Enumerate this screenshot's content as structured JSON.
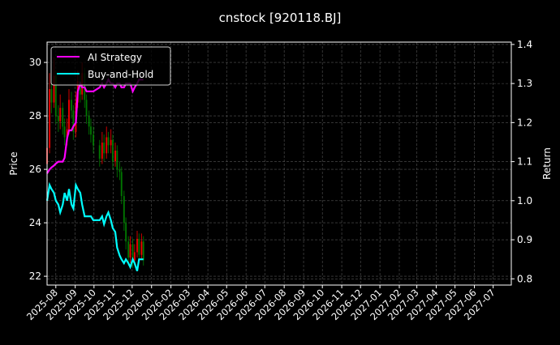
{
  "chart_data": {
    "type": "line",
    "title": "cnstock [920118.BJ]",
    "ylabel": "Price",
    "ylabel_right": "Return",
    "xlim": [
      "2025-07-18",
      "2027-07-30"
    ],
    "ylim": [
      21.67,
      30.76
    ],
    "ylim_right": [
      0.784,
      1.406
    ],
    "yticks": [
      22,
      24,
      26,
      28,
      30
    ],
    "yticks_right": [
      0.8,
      0.9,
      1.0,
      1.1,
      1.2,
      1.3,
      1.4
    ],
    "xticks": [
      "2025-08",
      "2025-09",
      "2025-10",
      "2025-11",
      "2025-12",
      "2026-01",
      "2026-02",
      "2026-03",
      "2026-04",
      "2026-05",
      "2026-06",
      "2026-07",
      "2026-08",
      "2026-09",
      "2026-10",
      "2026-11",
      "2026-12",
      "2027-01",
      "2027-02",
      "2027-03",
      "2027-04",
      "2027-05",
      "2027-06",
      "2027-07"
    ],
    "grid": true,
    "legend_placement": "top-left",
    "colors": {
      "up": "#ff0000",
      "down": "#008000",
      "ai": "#ff00ff",
      "bh": "#00ffff",
      "background": "#000000",
      "grid": "#555555"
    },
    "dates": [
      "2025-07-18",
      "2025-07-22",
      "2025-07-25",
      "2025-07-29",
      "2025-08-01",
      "2025-08-05",
      "2025-08-08",
      "2025-08-12",
      "2025-08-15",
      "2025-08-19",
      "2025-08-22",
      "2025-08-26",
      "2025-08-29",
      "2025-09-02",
      "2025-09-05",
      "2025-09-09",
      "2025-09-12",
      "2025-09-16",
      "2025-09-19",
      "2025-09-23",
      "2025-09-26",
      "2025-09-30",
      "2025-10-10",
      "2025-10-14",
      "2025-10-17",
      "2025-10-21",
      "2025-10-24",
      "2025-10-28",
      "2025-10-31",
      "2025-11-04",
      "2025-11-07",
      "2025-11-11",
      "2025-11-14",
      "2025-11-18",
      "2025-11-21",
      "2025-11-25",
      "2025-11-28",
      "2025-12-02",
      "2025-12-05",
      "2025-12-09",
      "2025-12-12",
      "2025-12-16",
      "2025-12-19"
    ],
    "candles_ohlc": [
      [
        26.2,
        27.2,
        25.9,
        26.8
      ],
      [
        26.8,
        29.6,
        26.6,
        29.0
      ],
      [
        29.0,
        29.4,
        28.1,
        28.5
      ],
      [
        28.5,
        30.2,
        28.3,
        29.5
      ],
      [
        29.5,
        29.7,
        27.7,
        28.0
      ],
      [
        28.0,
        28.4,
        27.4,
        27.8
      ],
      [
        27.8,
        28.8,
        27.5,
        28.3
      ],
      [
        28.3,
        28.5,
        27.3,
        27.6
      ],
      [
        27.6,
        27.9,
        26.9,
        27.2
      ],
      [
        27.2,
        27.9,
        26.9,
        27.5
      ],
      [
        27.5,
        29.0,
        27.3,
        28.6
      ],
      [
        28.6,
        28.9,
        27.9,
        28.2
      ],
      [
        28.2,
        28.4,
        27.1,
        27.4
      ],
      [
        27.4,
        28.9,
        27.2,
        28.5
      ],
      [
        28.5,
        29.7,
        28.3,
        29.3
      ],
      [
        29.3,
        29.5,
        28.5,
        28.8
      ],
      [
        28.8,
        30.0,
        28.6,
        29.6
      ],
      [
        29.6,
        29.8,
        28.3,
        28.6
      ],
      [
        28.6,
        28.8,
        27.7,
        28.0
      ],
      [
        28.0,
        28.2,
        27.3,
        27.6
      ],
      [
        27.6,
        27.9,
        27.0,
        27.3
      ],
      [
        27.3,
        27.6,
        26.6,
        26.9
      ],
      [
        26.9,
        27.1,
        26.1,
        26.4
      ],
      [
        26.4,
        27.4,
        26.2,
        27.0
      ],
      [
        27.0,
        27.3,
        26.3,
        26.6
      ],
      [
        26.6,
        27.6,
        26.4,
        27.2
      ],
      [
        27.2,
        27.4,
        26.6,
        26.9
      ],
      [
        26.9,
        27.5,
        26.6,
        27.1
      ],
      [
        27.1,
        27.3,
        26.0,
        26.3
      ],
      [
        26.3,
        27.0,
        26.1,
        26.7
      ],
      [
        26.7,
        26.9,
        25.7,
        26.0
      ],
      [
        26.0,
        26.3,
        25.6,
        25.9
      ],
      [
        25.9,
        26.1,
        24.7,
        25.0
      ],
      [
        25.0,
        25.2,
        23.7,
        24.0
      ],
      [
        24.0,
        24.2,
        23.0,
        23.3
      ],
      [
        23.3,
        23.5,
        22.4,
        22.7
      ],
      [
        22.7,
        23.5,
        22.5,
        23.2
      ],
      [
        23.2,
        23.4,
        22.3,
        22.6
      ],
      [
        22.6,
        23.2,
        22.4,
        22.9
      ],
      [
        22.9,
        23.7,
        22.7,
        23.4
      ],
      [
        23.4,
        23.6,
        22.6,
        22.8
      ],
      [
        22.8,
        23.6,
        22.6,
        23.3
      ],
      [
        23.3,
        23.5,
        22.4,
        22.6
      ]
    ],
    "series": [
      {
        "name": "AI Strategy",
        "values": [
          1.07,
          1.08,
          1.085,
          1.09,
          1.095,
          1.1,
          1.1,
          1.1,
          1.11,
          1.16,
          1.18,
          1.18,
          1.19,
          1.2,
          1.28,
          1.3,
          1.29,
          1.29,
          1.28,
          1.28,
          1.28,
          1.28,
          1.29,
          1.3,
          1.29,
          1.3,
          1.31,
          1.3,
          1.3,
          1.29,
          1.3,
          1.3,
          1.29,
          1.29,
          1.3,
          1.3,
          1.3,
          1.28,
          1.29,
          1.3,
          1.31,
          1.31,
          1.31
        ]
      },
      {
        "name": "Buy-and-Hold",
        "values": [
          1.0,
          1.04,
          1.03,
          1.02,
          1.0,
          0.99,
          0.97,
          0.99,
          1.02,
          1.0,
          1.03,
          0.99,
          0.98,
          1.04,
          1.03,
          1.02,
          0.99,
          0.96,
          0.96,
          0.96,
          0.96,
          0.95,
          0.95,
          0.96,
          0.94,
          0.96,
          0.97,
          0.95,
          0.93,
          0.92,
          0.88,
          0.86,
          0.85,
          0.84,
          0.85,
          0.84,
          0.83,
          0.85,
          0.84,
          0.82,
          0.85,
          0.85,
          0.85
        ]
      }
    ]
  }
}
